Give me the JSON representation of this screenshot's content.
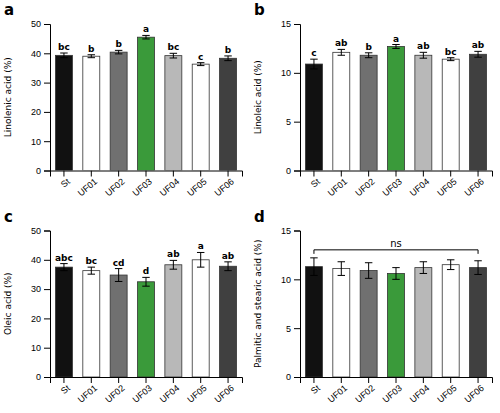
{
  "chart_data": [
    {
      "type": "bar",
      "title": "a",
      "ylabel": "Linolenic acid (%)",
      "categories": [
        "St",
        "UF01",
        "UF02",
        "UF03",
        "UF04",
        "UF05",
        "UF06"
      ],
      "values": [
        39.3,
        39.0,
        40.4,
        45.5,
        39.2,
        36.3,
        38.3
      ],
      "errors": [
        0.8,
        0.5,
        0.6,
        0.6,
        0.8,
        0.5,
        0.8
      ],
      "labels": [
        "bc",
        "b",
        "b",
        "a",
        "bc",
        "c",
        "b"
      ],
      "colors": [
        "#111111",
        "#ffffff",
        "#707070",
        "#3a9a3a",
        "#b8b8b8",
        "#ffffff",
        "#404040"
      ],
      "ylim": [
        0,
        50
      ],
      "yticks": [
        0,
        10,
        20,
        30,
        40,
        50
      ]
    },
    {
      "type": "bar",
      "title": "b",
      "ylabel": "Linoleic acid (%)",
      "categories": [
        "St",
        "UF01",
        "UF02",
        "UF03",
        "UF04",
        "UF05",
        "UF06"
      ],
      "values": [
        10.9,
        12.1,
        11.8,
        12.7,
        11.8,
        11.4,
        11.9
      ],
      "errors": [
        0.5,
        0.3,
        0.25,
        0.2,
        0.3,
        0.15,
        0.3
      ],
      "labels": [
        "c",
        "ab",
        "b",
        "a",
        "ab",
        "bc",
        "ab"
      ],
      "colors": [
        "#111111",
        "#ffffff",
        "#707070",
        "#3a9a3a",
        "#b8b8b8",
        "#ffffff",
        "#404040"
      ],
      "ylim": [
        0,
        15
      ],
      "yticks": [
        0,
        5,
        10,
        15
      ]
    },
    {
      "type": "bar",
      "title": "c",
      "ylabel": "Oleic acid (%)",
      "categories": [
        "St",
        "UF01",
        "UF02",
        "UF03",
        "UF04",
        "UF05",
        "UF06"
      ],
      "values": [
        37.5,
        36.3,
        34.8,
        32.5,
        38.3,
        40.0,
        37.8
      ],
      "errors": [
        1.2,
        1.2,
        2.2,
        1.5,
        1.5,
        2.5,
        1.5
      ],
      "labels": [
        "abc",
        "bc",
        "cd",
        "d",
        "ab",
        "a",
        "ab"
      ],
      "colors": [
        "#111111",
        "#ffffff",
        "#707070",
        "#3a9a3a",
        "#b8b8b8",
        "#ffffff",
        "#404040"
      ],
      "ylim": [
        0,
        50
      ],
      "yticks": [
        0,
        10,
        20,
        30,
        40,
        50
      ]
    },
    {
      "type": "bar",
      "title": "d",
      "ylabel": "Palmitic and stearic acid (%)",
      "categories": [
        "St",
        "UF01",
        "UF02",
        "UF03",
        "UF04",
        "UF05",
        "UF06"
      ],
      "values": [
        11.3,
        11.1,
        10.9,
        10.6,
        11.2,
        11.5,
        11.2
      ],
      "errors": [
        0.9,
        0.7,
        0.8,
        0.6,
        0.6,
        0.5,
        0.7
      ],
      "annotations": [
        {
          "text": "ns",
          "from": "St",
          "to": "UF06"
        }
      ],
      "colors": [
        "#111111",
        "#ffffff",
        "#707070",
        "#3a9a3a",
        "#b8b8b8",
        "#ffffff",
        "#404040"
      ],
      "ylim": [
        0,
        15
      ],
      "yticks": [
        0,
        5,
        10,
        15
      ]
    }
  ]
}
